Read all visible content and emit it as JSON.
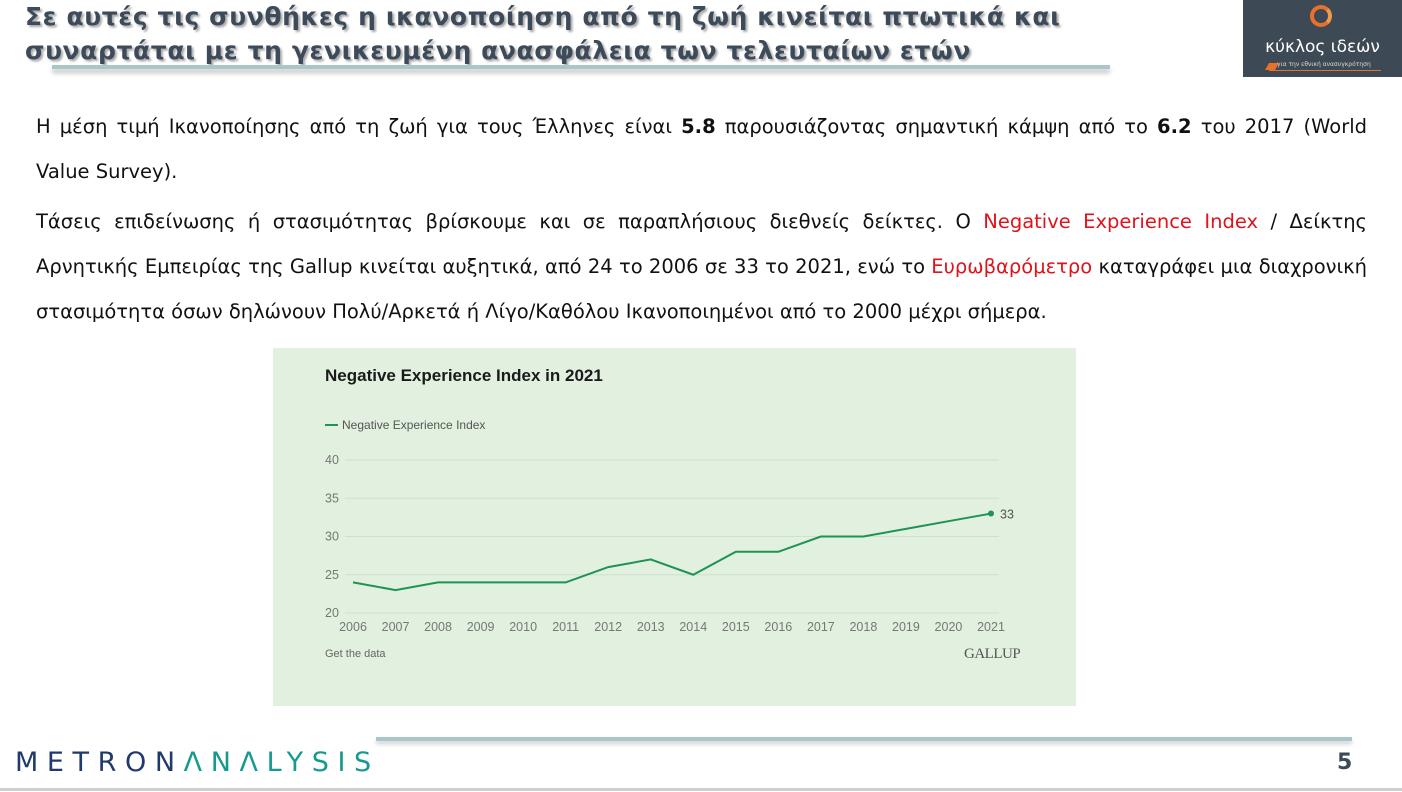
{
  "slide": {
    "title": "Σε αυτές τις  συνθήκες η ικανοποίηση από τη ζωή κινείται πτωτικά και συναρτάται με τη γενικευμένη ανασφάλεια των τελευταίων ετών",
    "title_line1": "Σε αυτές τις  συνθήκες η ικανοποίηση από τη ζωή κινείται πτωτικά και",
    "title_line2": "συναρτάται με τη γενικευμένη ανασφάλεια των τελευταίων ετών",
    "page_number": "5"
  },
  "logo_top": {
    "name": "κύκλος ιδεών",
    "tagline": "για την εθνική ανασυγκρότηση",
    "bg_color": "#3d4a55",
    "accent_color": "#e8702a"
  },
  "paragraph1": {
    "t1": "Η μέση τιμή Ικανοποίησης από τη ζωή για τους Έλληνες είναι ",
    "b1": "5.8",
    "t2": " παρουσιάζοντας σημαντική κάμψη από το ",
    "b2": "6.2",
    "t3": " του 2017 (World Value Survey)."
  },
  "paragraph2": {
    "t1": "Τάσεις επιδείνωσης ή στασιμότητας βρίσκουμε και σε παραπλήσιους διεθνείς δείκτες. Ο ",
    "r1": "Negative Experience Index",
    "t2": " / Δείκτης Αρνητικής Εμπειρίας της Gallup κινείται αυξητικά, από 24 το 2006 σε 33 το 2021, ενώ το ",
    "r2": "Ευρωβαρόμετρο",
    "t3": " καταγράφει μια διαχρονική στασιμότητα όσων δηλώνουν Πολύ/Αρκετά ή Λίγο/Καθόλου Ικανοποιημένοι από το 2000 μέχρι σήμερα.",
    "highlight_color": "#e0131b"
  },
  "chart_meta": {
    "get_data_label": "Get the data",
    "source_logo": "GALLUP",
    "background": "#e1f0df",
    "line_color": "#1f9255",
    "end_label": "33"
  },
  "chart_data": {
    "type": "line",
    "title": "Negative Experience Index in 2021",
    "xlabel": "",
    "ylabel": "",
    "x": [
      "2006",
      "2007",
      "2008",
      "2009",
      "2010",
      "2011",
      "2012",
      "2013",
      "2014",
      "2015",
      "2016",
      "2017",
      "2018",
      "2019",
      "2020",
      "2021"
    ],
    "series": [
      {
        "name": "Negative Experience Index",
        "values": [
          24,
          23,
          24,
          24,
          24,
          24,
          26,
          27,
          25,
          28,
          28,
          30,
          30,
          31,
          32,
          33
        ]
      }
    ],
    "yticks": [
      20,
      25,
      30,
      35,
      40
    ],
    "ylim": [
      20,
      40
    ],
    "grid": true,
    "legend_position": "top-left",
    "annotations": [
      {
        "x": "2021",
        "y": 33,
        "text": "33"
      }
    ]
  },
  "footer": {
    "brand_part1": "METRON",
    "brand_part2": "ΛNΛLYSIS",
    "brand_color1": "#1f3a6b",
    "brand_color2": "#159a8f"
  }
}
